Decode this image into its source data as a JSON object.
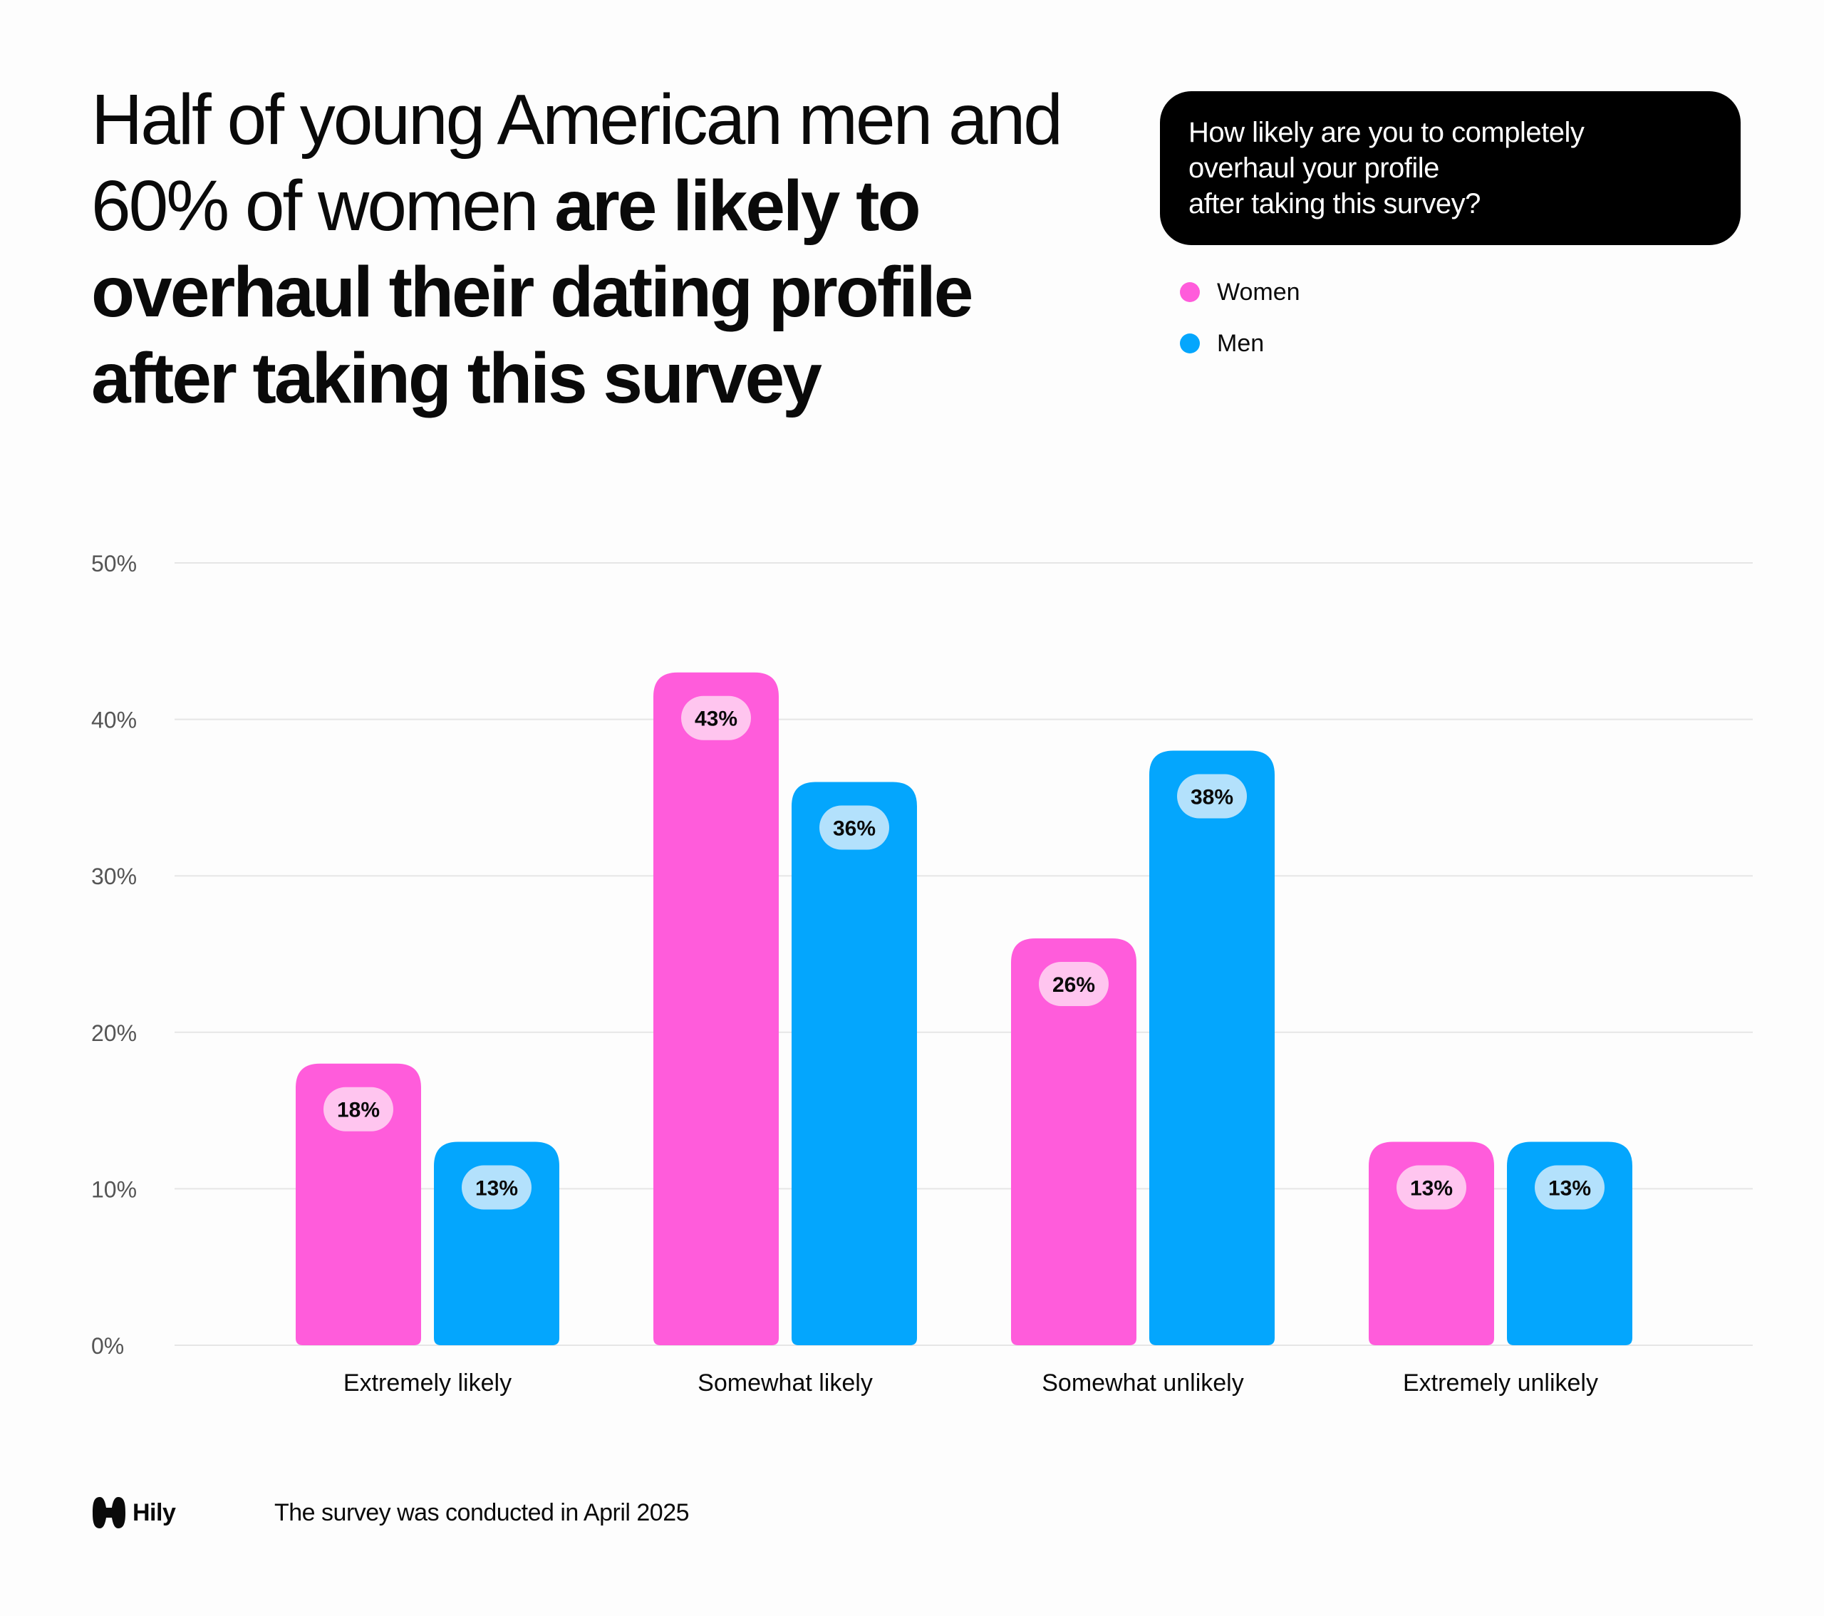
{
  "headline": {
    "regular": "Half of young American men and 60% of women ",
    "bold": "are likely to overhaul their dating profile after taking this survey"
  },
  "question": {
    "lines": [
      "How likely are you to completely",
      "overhaul your profile",
      "after taking this survey?"
    ]
  },
  "colors": {
    "women": "#ff5cdb",
    "men": "#04a6fd",
    "women_label_bg": "#ffc5ef",
    "men_label_bg": "#b3e1fc",
    "grid": "#e6e6e6",
    "axis_text": "#555555"
  },
  "chart_data": {
    "type": "bar",
    "title": "How likely are you to completely overhaul your profile after taking this survey?",
    "categories": [
      "Extremely likely",
      "Somewhat likely",
      "Somewhat unlikely",
      "Extremely unlikely"
    ],
    "series": [
      {
        "name": "Women",
        "values": [
          18,
          43,
          26,
          13
        ],
        "labels": [
          "18%",
          "43%",
          "26%",
          "13%"
        ]
      },
      {
        "name": "Men",
        "values": [
          13,
          36,
          38,
          13
        ],
        "labels": [
          "13%",
          "36%",
          "38%",
          "13%"
        ]
      }
    ],
    "ylim": [
      0,
      50
    ],
    "yticks": [
      0,
      10,
      20,
      30,
      40,
      50
    ],
    "ytick_labels": [
      "0%",
      "10%",
      "20%",
      "30%",
      "40%",
      "50%"
    ],
    "xlabel": "",
    "ylabel": "",
    "grid": true,
    "legend": "top-right"
  },
  "footer": {
    "brand": "Hily",
    "note": "The survey was conducted in April 2025"
  }
}
